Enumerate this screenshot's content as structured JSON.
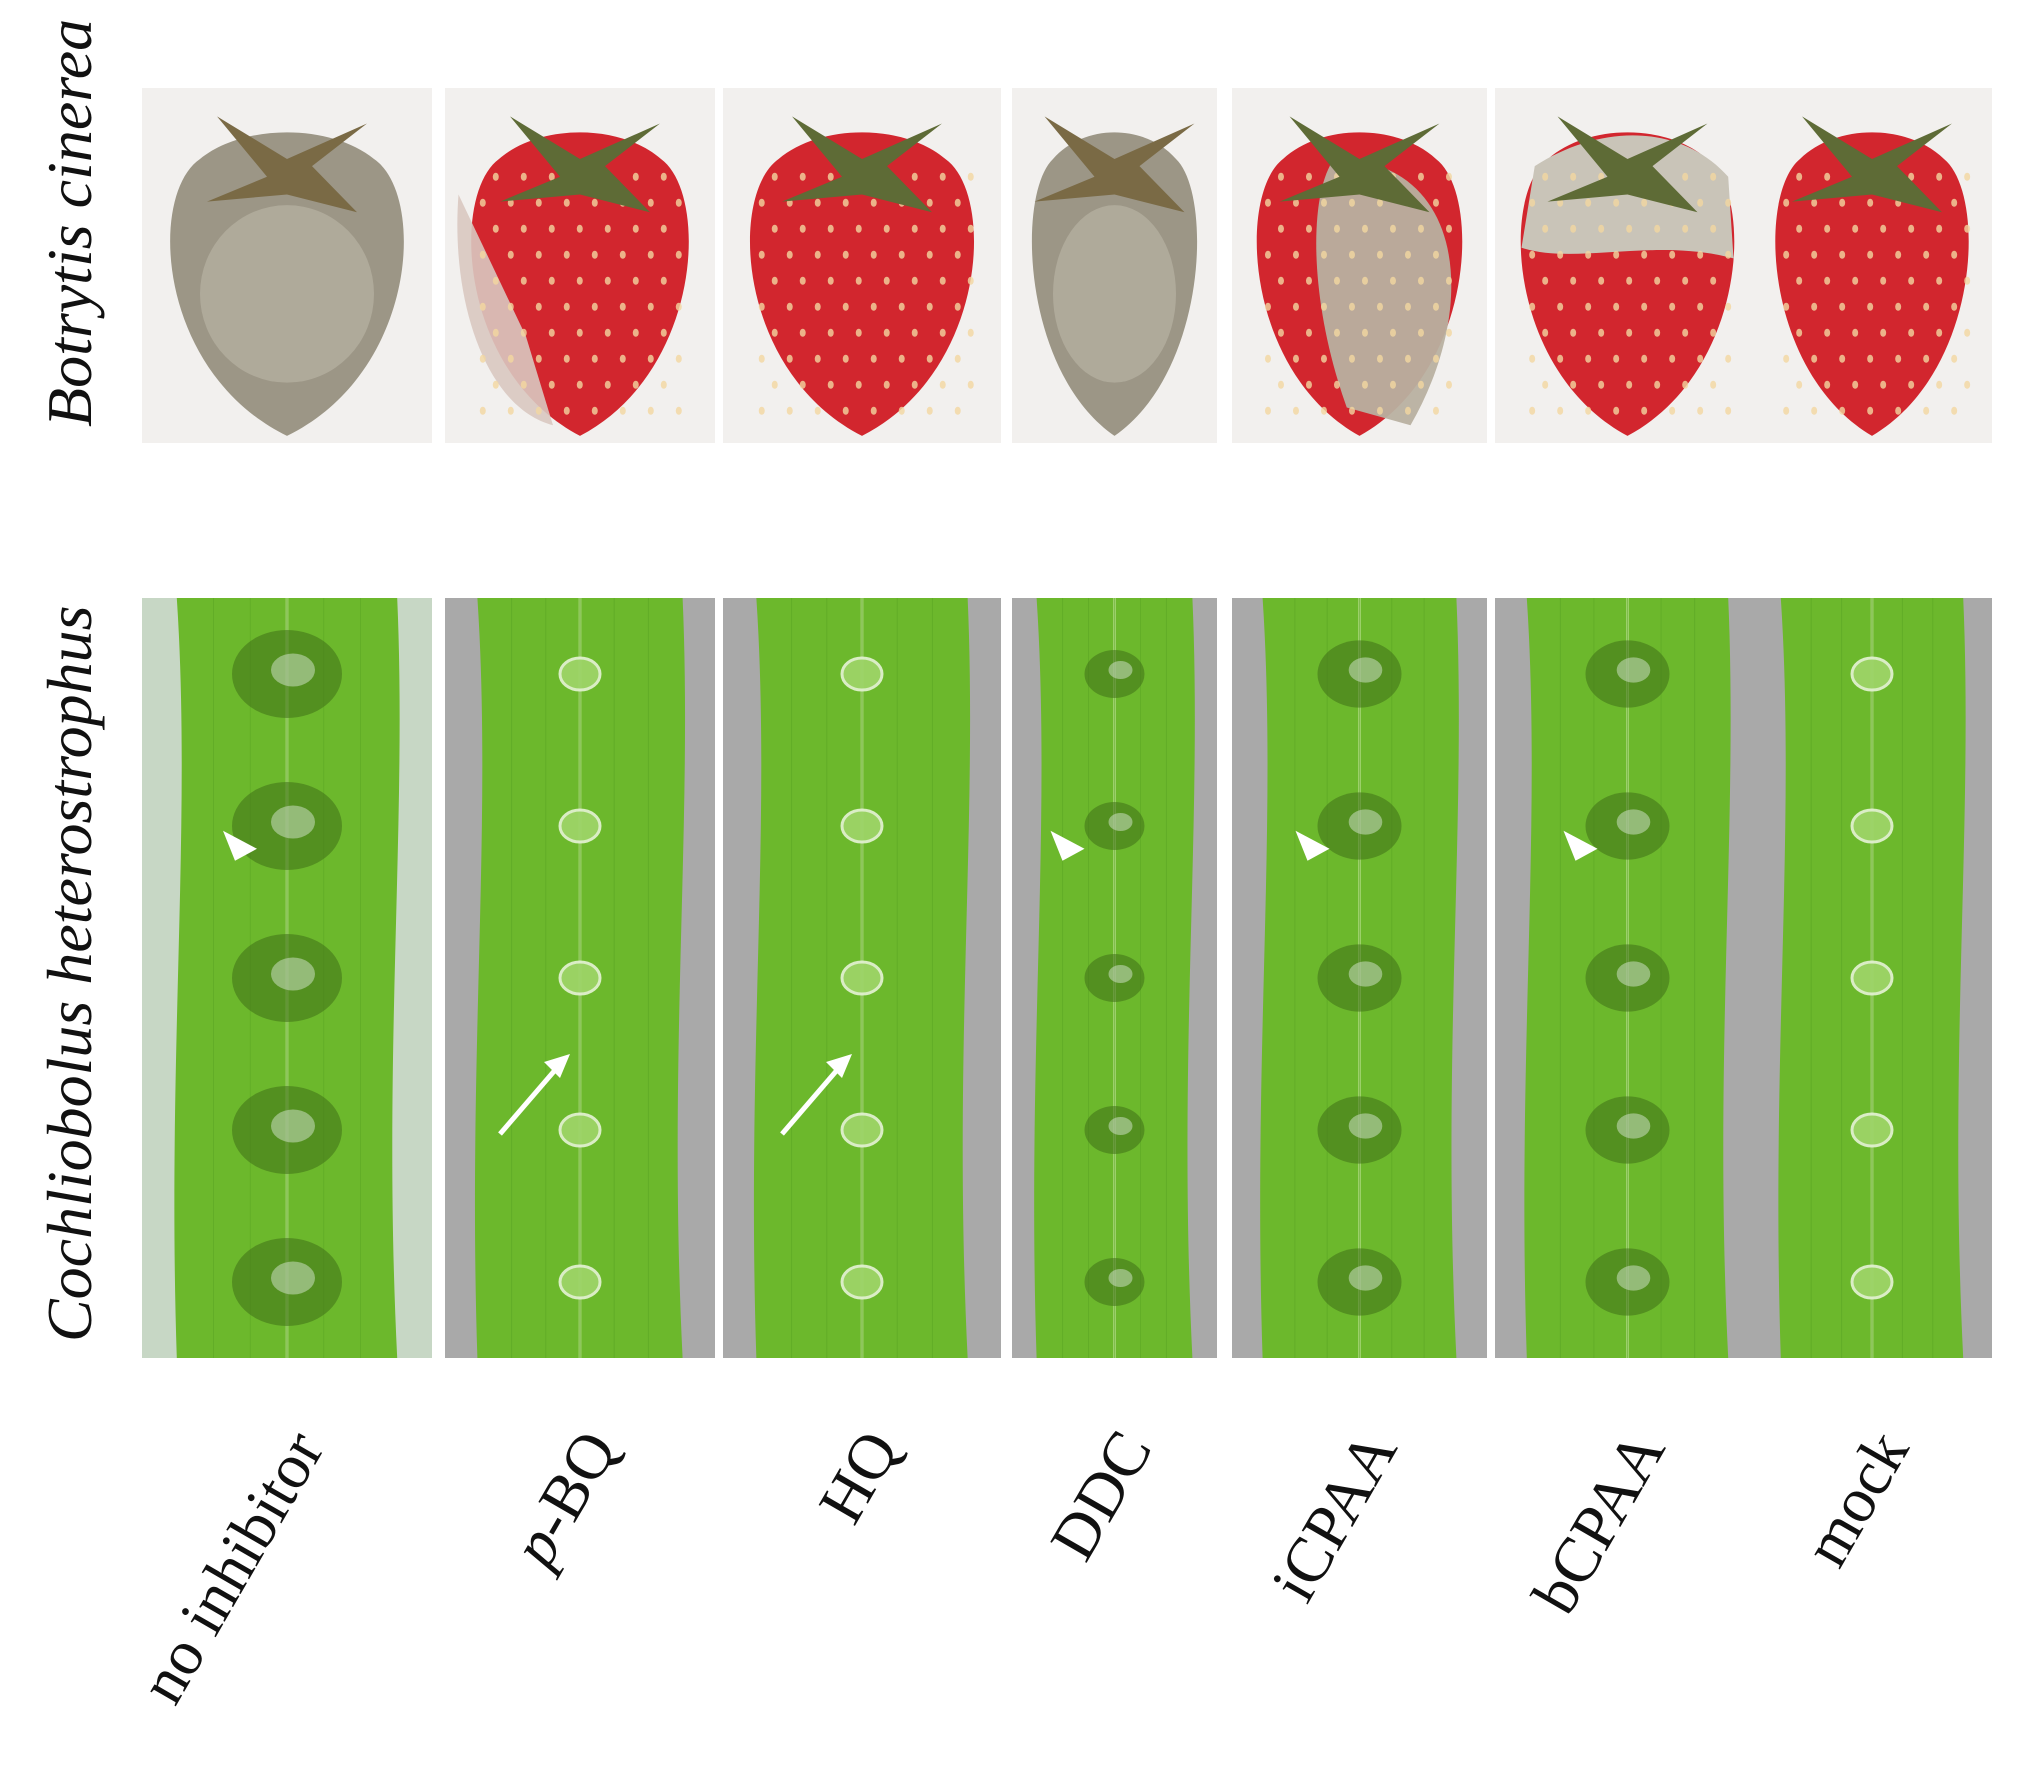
{
  "row_labels": {
    "top": "Botrytis cinerea",
    "bottom": "Cochliobolus heterostrophus"
  },
  "treatments": [
    {
      "label_prefix": "",
      "label_main": "no inhibitor",
      "fruit": "rotted-gray",
      "leaf_lesions": "severe",
      "markers": [
        "arrowhead"
      ]
    },
    {
      "label_prefix": "p",
      "label_main": "-BQ",
      "fruit": "red-mold-edge",
      "leaf_lesions": "none",
      "markers": [
        "arrow"
      ]
    },
    {
      "label_prefix": "",
      "label_main": "HQ",
      "fruit": "red-healthy",
      "leaf_lesions": "none",
      "markers": [
        "arrow"
      ]
    },
    {
      "label_prefix": "",
      "label_main": "DDC",
      "fruit": "rotted-gray",
      "leaf_lesions": "mild",
      "markers": [
        "arrowhead"
      ]
    },
    {
      "label_prefix": "",
      "label_main": "iCPAA",
      "fruit": "half-mold",
      "leaf_lesions": "moderate",
      "markers": [
        "arrowhead"
      ]
    },
    {
      "label_prefix": "",
      "label_main": "bCPAA",
      "fruit": "top-mold",
      "leaf_lesions": "moderate",
      "markers": [
        "arrowhead"
      ]
    },
    {
      "label_prefix": "",
      "label_main": "mock",
      "fruit": "red-healthy",
      "leaf_lesions": "none",
      "markers": []
    }
  ],
  "colors": {
    "leaf": "#6cb82c",
    "leaf_dark": "#4f9a1e",
    "strawberry": "#d2262e",
    "mold": "#b8b0a0",
    "background_gray": "#a9a9a9"
  }
}
